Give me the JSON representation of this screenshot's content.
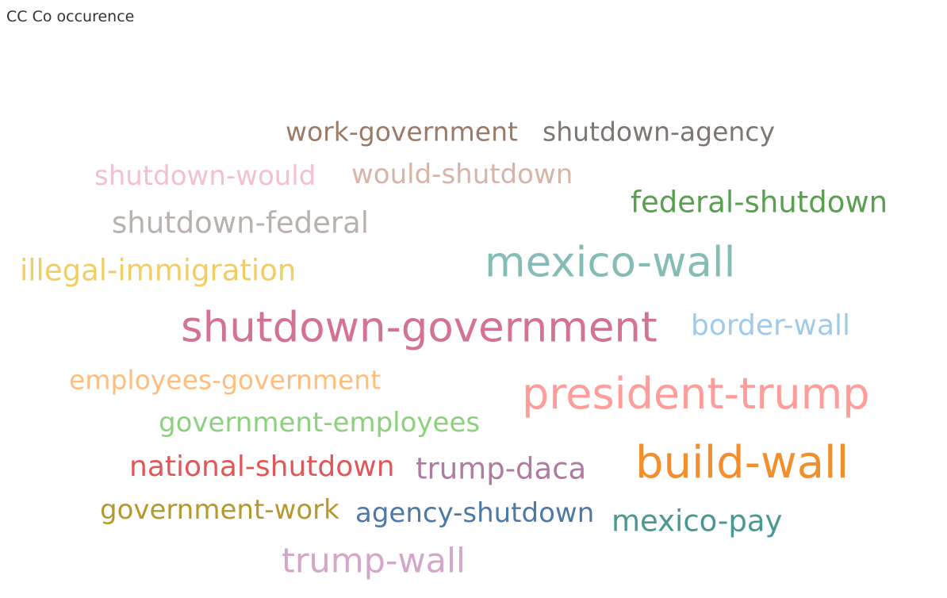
{
  "title": "CC Co occurence",
  "chart_data": {
    "type": "wordcloud",
    "title": "CC Co occurence",
    "words": [
      {
        "text": "work-government",
        "color": "#9C7A68"
      },
      {
        "text": "shutdown-agency",
        "color": "#7E7672"
      },
      {
        "text": "shutdown-would",
        "color": "#F4BED4"
      },
      {
        "text": "would-shutdown",
        "color": "#D6B5A8"
      },
      {
        "text": "federal-shutdown",
        "color": "#58A050"
      },
      {
        "text": "shutdown-federal",
        "color": "#BAB0AC"
      },
      {
        "text": "illegal-immigration",
        "color": "#F1CE63"
      },
      {
        "text": "mexico-wall",
        "color": "#86BCB6"
      },
      {
        "text": "shutdown-government",
        "color": "#D37295"
      },
      {
        "text": "border-wall",
        "color": "#A0CBE8"
      },
      {
        "text": "employees-government",
        "color": "#FFBE7D"
      },
      {
        "text": "president-trump",
        "color": "#FF9D9A"
      },
      {
        "text": "government-employees",
        "color": "#8CD17D"
      },
      {
        "text": "build-wall",
        "color": "#F28E2B"
      },
      {
        "text": "national-shutdown",
        "color": "#E15759"
      },
      {
        "text": "trump-daca",
        "color": "#B07AA1"
      },
      {
        "text": "government-work",
        "color": "#B6992D"
      },
      {
        "text": "agency-shutdown",
        "color": "#4E79A7"
      },
      {
        "text": "mexico-pay",
        "color": "#499894"
      },
      {
        "text": "trump-wall",
        "color": "#D4A6C8"
      }
    ]
  }
}
